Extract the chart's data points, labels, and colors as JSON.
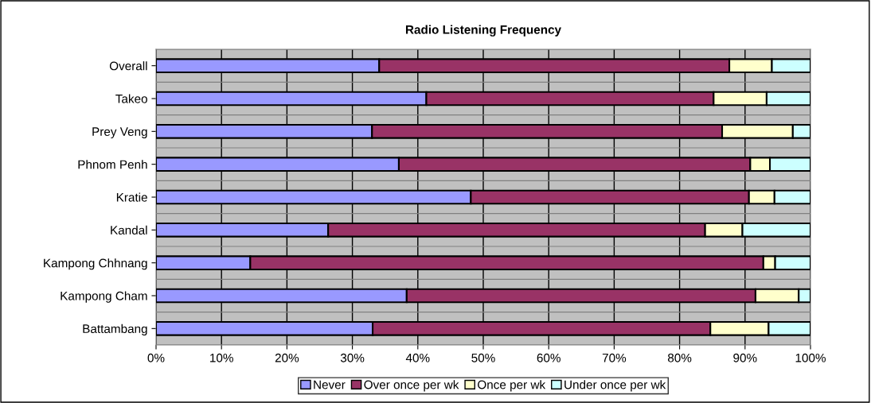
{
  "chart_data": {
    "type": "bar",
    "orientation": "horizontal",
    "stacked": true,
    "title": "Radio Listening Frequency",
    "categories": [
      "Overall",
      "Takeo",
      "Prey Veng",
      "Phnom Penh",
      "Kratie",
      "Kandal",
      "Kampong Chhnang",
      "Kampong Cham",
      "Battambang"
    ],
    "series": [
      {
        "name": "Never",
        "color": "#9999ff",
        "values": [
          34.1,
          41.3,
          33.0,
          37.1,
          48.1,
          26.3,
          14.4,
          38.3,
          33.1
        ]
      },
      {
        "name": "Over once per wk",
        "color": "#993366",
        "values": [
          53.5,
          43.9,
          53.5,
          53.7,
          42.5,
          57.6,
          78.4,
          53.3,
          51.6
        ]
      },
      {
        "name": "Once per wk",
        "color": "#ffffcc",
        "values": [
          6.5,
          8.1,
          10.8,
          3.0,
          3.9,
          5.7,
          1.8,
          6.6,
          8.9
        ]
      },
      {
        "name": "Under once per wk",
        "color": "#ccffff",
        "values": [
          5.9,
          6.7,
          2.7,
          6.2,
          5.5,
          10.4,
          5.4,
          1.8,
          6.4
        ]
      }
    ],
    "xlim": [
      0,
      100
    ],
    "xticks": [
      {
        "value": 0,
        "label": "0%"
      },
      {
        "value": 10,
        "label": "10%"
      },
      {
        "value": 20,
        "label": "20%"
      },
      {
        "value": 30,
        "label": "30%"
      },
      {
        "value": 40,
        "label": "40%"
      },
      {
        "value": 50,
        "label": "50%"
      },
      {
        "value": 60,
        "label": "60%"
      },
      {
        "value": 70,
        "label": "70%"
      },
      {
        "value": 80,
        "label": "80%"
      },
      {
        "value": 90,
        "label": "90%"
      },
      {
        "value": 100,
        "label": "100%"
      }
    ],
    "grid": "x",
    "legend": "bottom"
  }
}
